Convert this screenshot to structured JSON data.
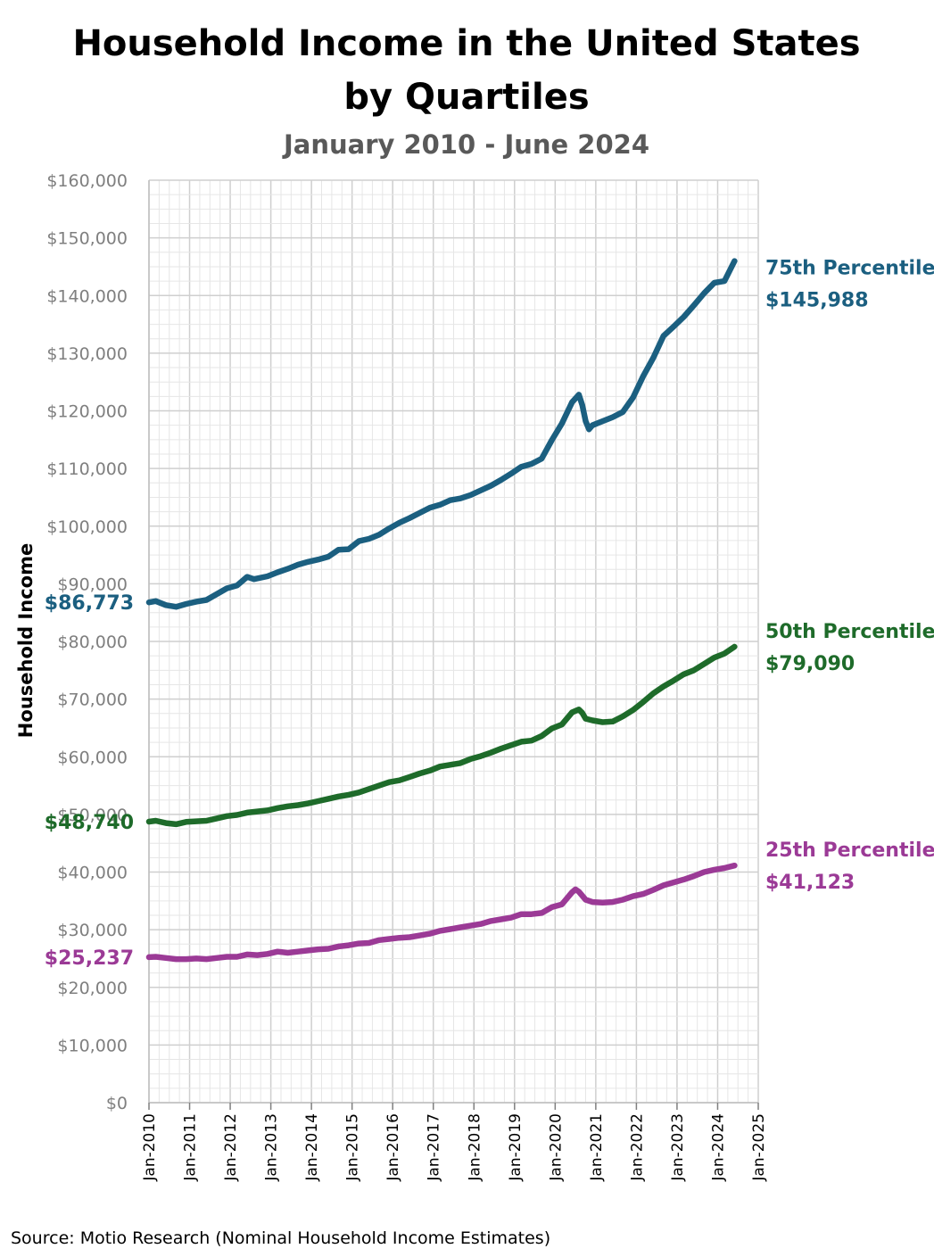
{
  "chart_data": {
    "type": "line",
    "title_line1": "Household Income in the United States",
    "title_line2": "by Quartiles",
    "subtitle": "January 2010 - June 2024",
    "ylabel": "Household Income",
    "xlabel": "",
    "source": "Source: Motio Research (Nominal Household Income Estimates)",
    "ylim": [
      0,
      160000
    ],
    "y_ticks": [
      "$0",
      "$10,000",
      "$20,000",
      "$30,000",
      "$40,000",
      "$50,000",
      "$60,000",
      "$70,000",
      "$80,000",
      "$90,000",
      "$100,000",
      "$110,000",
      "$120,000",
      "$130,000",
      "$140,000",
      "$150,000",
      "$160,000"
    ],
    "y_tick_values": [
      0,
      10000,
      20000,
      30000,
      40000,
      50000,
      60000,
      70000,
      80000,
      90000,
      100000,
      110000,
      120000,
      130000,
      140000,
      150000,
      160000
    ],
    "xlim": [
      "2010-01",
      "2025-01"
    ],
    "x_ticks": [
      "Jan-2010",
      "Jan-2011",
      "Jan-2012",
      "Jan-2013",
      "Jan-2014",
      "Jan-2015",
      "Jan-2016",
      "Jan-2017",
      "Jan-2018",
      "Jan-2019",
      "Jan-2020",
      "Jan-2021",
      "Jan-2022",
      "Jan-2023",
      "Jan-2024",
      "Jan-2025"
    ],
    "grid": true,
    "series": [
      {
        "name": "75th Percentile",
        "color": "#1b5f80",
        "start_label": "$86,773",
        "end_label": "$145,988",
        "points": [
          [
            "2010-01",
            86773
          ],
          [
            "2010-03",
            87000
          ],
          [
            "2010-06",
            86300
          ],
          [
            "2010-09",
            86000
          ],
          [
            "2010-12",
            86500
          ],
          [
            "2011-03",
            86900
          ],
          [
            "2011-06",
            87200
          ],
          [
            "2011-09",
            88200
          ],
          [
            "2011-12",
            89200
          ],
          [
            "2012-03",
            89700
          ],
          [
            "2012-06",
            91200
          ],
          [
            "2012-08",
            90800
          ],
          [
            "2012-12",
            91300
          ],
          [
            "2013-03",
            92000
          ],
          [
            "2013-06",
            92600
          ],
          [
            "2013-09",
            93300
          ],
          [
            "2013-12",
            93800
          ],
          [
            "2014-03",
            94200
          ],
          [
            "2014-06",
            94700
          ],
          [
            "2014-09",
            95900
          ],
          [
            "2014-12",
            96000
          ],
          [
            "2015-03",
            97400
          ],
          [
            "2015-06",
            97800
          ],
          [
            "2015-09",
            98500
          ],
          [
            "2015-12",
            99600
          ],
          [
            "2016-03",
            100600
          ],
          [
            "2016-06",
            101400
          ],
          [
            "2016-09",
            102300
          ],
          [
            "2016-12",
            103200
          ],
          [
            "2017-03",
            103700
          ],
          [
            "2017-06",
            104500
          ],
          [
            "2017-09",
            104800
          ],
          [
            "2017-12",
            105400
          ],
          [
            "2018-03",
            106200
          ],
          [
            "2018-06",
            107000
          ],
          [
            "2018-09",
            108000
          ],
          [
            "2018-12",
            109100
          ],
          [
            "2019-03",
            110300
          ],
          [
            "2019-06",
            110800
          ],
          [
            "2019-09",
            111700
          ],
          [
            "2019-12",
            114900
          ],
          [
            "2020-03",
            117800
          ],
          [
            "2020-06",
            121500
          ],
          [
            "2020-08",
            122800
          ],
          [
            "2020-09",
            121000
          ],
          [
            "2020-10",
            118200
          ],
          [
            "2020-11",
            116800
          ],
          [
            "2020-12",
            117500
          ],
          [
            "2021-03",
            118200
          ],
          [
            "2021-06",
            118900
          ],
          [
            "2021-09",
            119800
          ],
          [
            "2021-12",
            122300
          ],
          [
            "2022-03",
            126000
          ],
          [
            "2022-06",
            129200
          ],
          [
            "2022-09",
            133000
          ],
          [
            "2022-12",
            134600
          ],
          [
            "2023-03",
            136300
          ],
          [
            "2023-06",
            138300
          ],
          [
            "2023-09",
            140400
          ],
          [
            "2023-12",
            142200
          ],
          [
            "2024-03",
            142500
          ],
          [
            "2024-06",
            145988
          ]
        ]
      },
      {
        "name": "50th Percentile",
        "color": "#1e6b2a",
        "start_label": "$48,740",
        "end_label": "$79,090",
        "points": [
          [
            "2010-01",
            48740
          ],
          [
            "2010-03",
            48900
          ],
          [
            "2010-06",
            48500
          ],
          [
            "2010-09",
            48300
          ],
          [
            "2010-12",
            48700
          ],
          [
            "2011-03",
            48800
          ],
          [
            "2011-06",
            48900
          ],
          [
            "2011-09",
            49300
          ],
          [
            "2011-12",
            49700
          ],
          [
            "2012-03",
            49900
          ],
          [
            "2012-06",
            50300
          ],
          [
            "2012-09",
            50500
          ],
          [
            "2012-12",
            50700
          ],
          [
            "2013-03",
            51100
          ],
          [
            "2013-06",
            51400
          ],
          [
            "2013-09",
            51600
          ],
          [
            "2013-12",
            51900
          ],
          [
            "2014-03",
            52300
          ],
          [
            "2014-06",
            52700
          ],
          [
            "2014-09",
            53100
          ],
          [
            "2014-12",
            53400
          ],
          [
            "2015-03",
            53800
          ],
          [
            "2015-06",
            54400
          ],
          [
            "2015-09",
            55000
          ],
          [
            "2015-12",
            55600
          ],
          [
            "2016-03",
            55900
          ],
          [
            "2016-06",
            56500
          ],
          [
            "2016-09",
            57100
          ],
          [
            "2016-12",
            57600
          ],
          [
            "2017-03",
            58300
          ],
          [
            "2017-06",
            58600
          ],
          [
            "2017-09",
            58900
          ],
          [
            "2017-12",
            59600
          ],
          [
            "2018-03",
            60100
          ],
          [
            "2018-06",
            60700
          ],
          [
            "2018-09",
            61400
          ],
          [
            "2018-12",
            62000
          ],
          [
            "2019-03",
            62600
          ],
          [
            "2019-06",
            62800
          ],
          [
            "2019-09",
            63600
          ],
          [
            "2019-12",
            64900
          ],
          [
            "2020-03",
            65600
          ],
          [
            "2020-06",
            67700
          ],
          [
            "2020-08",
            68200
          ],
          [
            "2020-09",
            67600
          ],
          [
            "2020-10",
            66600
          ],
          [
            "2020-12",
            66300
          ],
          [
            "2021-03",
            66000
          ],
          [
            "2021-06",
            66100
          ],
          [
            "2021-09",
            67000
          ],
          [
            "2021-12",
            68100
          ],
          [
            "2022-03",
            69500
          ],
          [
            "2022-06",
            71000
          ],
          [
            "2022-09",
            72200
          ],
          [
            "2022-12",
            73200
          ],
          [
            "2023-03",
            74300
          ],
          [
            "2023-06",
            75000
          ],
          [
            "2023-09",
            76100
          ],
          [
            "2023-12",
            77200
          ],
          [
            "2024-03",
            77900
          ],
          [
            "2024-06",
            79090
          ]
        ]
      },
      {
        "name": "25th Percentile",
        "color": "#9b3a96",
        "start_label": "$25,237",
        "end_label": "$41,123",
        "points": [
          [
            "2010-01",
            25237
          ],
          [
            "2010-03",
            25300
          ],
          [
            "2010-06",
            25100
          ],
          [
            "2010-09",
            24900
          ],
          [
            "2010-12",
            24900
          ],
          [
            "2011-03",
            25000
          ],
          [
            "2011-06",
            24900
          ],
          [
            "2011-09",
            25100
          ],
          [
            "2011-12",
            25300
          ],
          [
            "2012-03",
            25300
          ],
          [
            "2012-06",
            25700
          ],
          [
            "2012-09",
            25600
          ],
          [
            "2012-12",
            25800
          ],
          [
            "2013-03",
            26200
          ],
          [
            "2013-06",
            26000
          ],
          [
            "2013-09",
            26200
          ],
          [
            "2013-12",
            26400
          ],
          [
            "2014-03",
            26600
          ],
          [
            "2014-06",
            26700
          ],
          [
            "2014-09",
            27100
          ],
          [
            "2014-12",
            27300
          ],
          [
            "2015-03",
            27600
          ],
          [
            "2015-06",
            27700
          ],
          [
            "2015-09",
            28200
          ],
          [
            "2015-12",
            28400
          ],
          [
            "2016-03",
            28600
          ],
          [
            "2016-06",
            28700
          ],
          [
            "2016-09",
            29000
          ],
          [
            "2016-12",
            29300
          ],
          [
            "2017-03",
            29800
          ],
          [
            "2017-06",
            30100
          ],
          [
            "2017-09",
            30400
          ],
          [
            "2017-12",
            30700
          ],
          [
            "2018-03",
            31000
          ],
          [
            "2018-06",
            31500
          ],
          [
            "2018-09",
            31800
          ],
          [
            "2018-12",
            32100
          ],
          [
            "2019-03",
            32700
          ],
          [
            "2019-06",
            32700
          ],
          [
            "2019-09",
            32900
          ],
          [
            "2019-12",
            33900
          ],
          [
            "2020-03",
            34400
          ],
          [
            "2020-06",
            36500
          ],
          [
            "2020-07",
            37000
          ],
          [
            "2020-08",
            36600
          ],
          [
            "2020-10",
            35200
          ],
          [
            "2020-12",
            34800
          ],
          [
            "2021-03",
            34700
          ],
          [
            "2021-06",
            34800
          ],
          [
            "2021-09",
            35200
          ],
          [
            "2021-12",
            35800
          ],
          [
            "2022-03",
            36200
          ],
          [
            "2022-06",
            36900
          ],
          [
            "2022-09",
            37700
          ],
          [
            "2022-12",
            38200
          ],
          [
            "2023-03",
            38700
          ],
          [
            "2023-06",
            39300
          ],
          [
            "2023-09",
            40000
          ],
          [
            "2023-12",
            40400
          ],
          [
            "2024-03",
            40700
          ],
          [
            "2024-06",
            41123
          ]
        ]
      }
    ]
  }
}
